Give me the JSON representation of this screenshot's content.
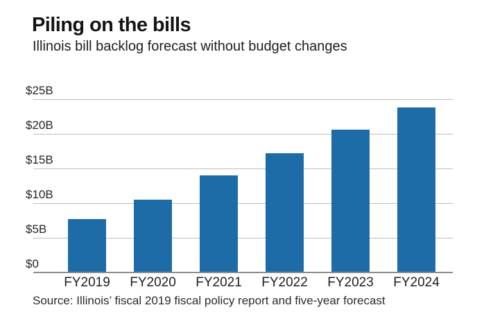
{
  "header": {
    "title": "Piling on the bills",
    "subtitle": "Illinois bill backlog forecast without budget changes"
  },
  "chart_data": {
    "type": "bar",
    "title": "Piling on the bills",
    "subtitle": "Illinois bill backlog forecast without budget changes",
    "categories": [
      "FY2019",
      "FY2020",
      "FY2021",
      "FY2022",
      "FY2023",
      "FY2024"
    ],
    "values": [
      7.7,
      10.5,
      14.0,
      17.2,
      20.6,
      23.8
    ],
    "xlabel": "",
    "ylabel": "",
    "ylim": [
      0,
      25
    ],
    "yticks": [
      {
        "value": 0,
        "label": "$0"
      },
      {
        "value": 5,
        "label": "$5B"
      },
      {
        "value": 10,
        "label": "$10B"
      },
      {
        "value": 15,
        "label": "$15B"
      },
      {
        "value": 20,
        "label": "$20B"
      },
      {
        "value": 25,
        "label": "$25B"
      }
    ],
    "grid": true,
    "legend": false,
    "colors": {
      "bar": "#1e6ca7",
      "gridline": "#bdbdbd",
      "axis": "#8c8c8c",
      "text": "#1a1a1a"
    }
  },
  "source_note": "Source: Illinois’ fiscal 2019 fiscal policy report and five-year forecast"
}
